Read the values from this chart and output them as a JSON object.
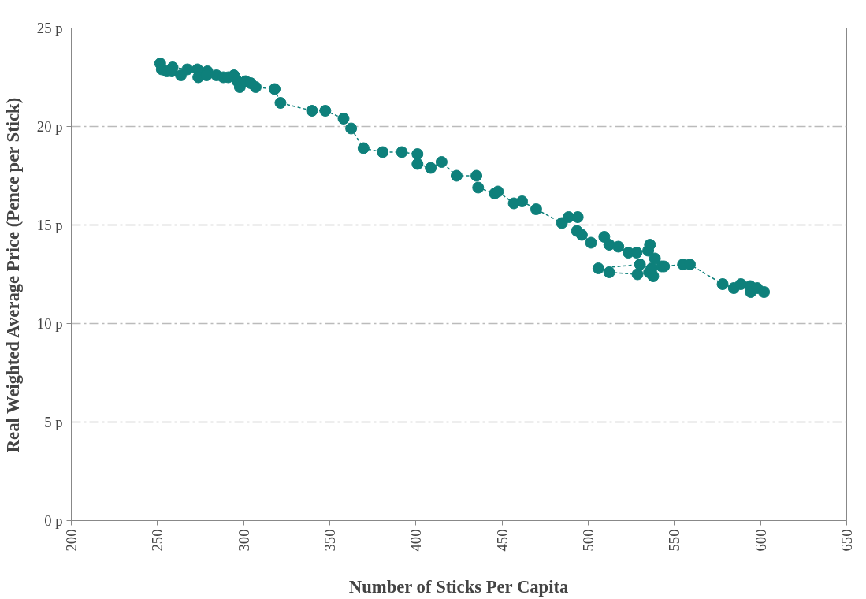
{
  "chart_data": {
    "type": "line",
    "xlabel": "Number of Sticks Per Capita",
    "ylabel": "Real Weighted Average Price (Pence per Stick)",
    "xlim": [
      200,
      650
    ],
    "xticks": [
      200,
      250,
      300,
      350,
      400,
      450,
      500,
      550,
      600,
      650
    ],
    "ylim": [
      0,
      25
    ],
    "yticks": [
      {
        "value": 0,
        "label": "0 p"
      },
      {
        "value": 5,
        "label": "5 p"
      },
      {
        "value": 10,
        "label": "10 p"
      },
      {
        "value": 15,
        "label": "15 p"
      },
      {
        "value": 20,
        "label": "20 p"
      },
      {
        "value": 25,
        "label": "25 p"
      }
    ],
    "grid": "y",
    "marker": "circle",
    "line_style": "dashed",
    "series": [
      {
        "color": "#0e807b",
        "x": [
          251.6,
          252.5,
          255.4,
          258.3,
          263.6,
          258.8,
          267.4,
          273.2,
          273.7,
          279.0,
          278.5,
          284.3,
          288.2,
          291.1,
          294.4,
          296.4,
          297.8,
          301.2,
          304.1,
          307.0,
          318.0,
          321.4,
          339.7,
          347.4,
          358.0,
          362.4,
          369.6,
          380.7,
          391.8,
          400.9,
          400.9,
          408.6,
          414.9,
          423.6,
          435.1,
          436.1,
          445.7,
          447.6,
          456.8,
          461.6,
          469.8,
          484.7,
          488.6,
          493.9,
          493.4,
          496.3,
          501.6,
          509.3,
          512.2,
          517.5,
          523.3,
          528.1,
          534.8,
          535.8,
          538.7,
          542.6,
          537.7,
          535.3,
          528.6,
          512.2,
          505.9,
          530.0,
          536.8,
          544.0,
          555.0,
          559.0,
          578.0,
          584.5,
          588.6,
          594.0,
          594.3,
          598.0,
          602.0
        ],
        "values": [
          23.2,
          22.9,
          22.8,
          22.8,
          22.6,
          23.0,
          22.9,
          22.9,
          22.5,
          22.8,
          22.6,
          22.6,
          22.5,
          22.5,
          22.6,
          22.3,
          22.0,
          22.3,
          22.2,
          22.0,
          21.9,
          21.2,
          20.8,
          20.8,
          20.4,
          19.9,
          18.9,
          18.7,
          18.7,
          18.6,
          18.1,
          17.9,
          18.2,
          17.5,
          17.5,
          16.9,
          16.6,
          16.7,
          16.1,
          16.2,
          15.8,
          15.1,
          15.4,
          15.4,
          14.7,
          14.5,
          14.1,
          14.4,
          14.0,
          13.9,
          13.6,
          13.6,
          13.7,
          14.0,
          13.3,
          12.9,
          12.4,
          12.6,
          12.5,
          12.6,
          12.8,
          13.0,
          12.8,
          12.9,
          13.0,
          13.0,
          12.0,
          11.8,
          12.0,
          11.9,
          11.6,
          11.8,
          11.6
        ]
      }
    ]
  }
}
